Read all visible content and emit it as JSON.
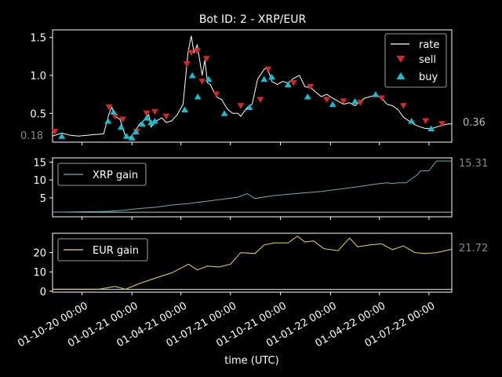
{
  "title": "Bot ID: 2 - XRP/EUR",
  "xlabel": "time (UTC)",
  "colors": {
    "background": "#000000",
    "rate": "#ffffff",
    "sell": "#d62728",
    "buy": "#17becf",
    "xrp_gain": "#6ab0ae",
    "eur_gain": "#f0d860",
    "axis": "#ffffff",
    "annotation": "#888888"
  },
  "chart_data": [
    {
      "type": "line",
      "name": "rate-panel",
      "x_range": [
        "2020-08-08",
        "2022-08-12"
      ],
      "ylim": [
        0.12,
        1.6
      ],
      "yticks": [
        0.5,
        1.0,
        1.5
      ],
      "ytick_labels": [
        "0.5",
        "1.0",
        "1.5"
      ],
      "legend": {
        "placement": "top-right",
        "entries": [
          "rate",
          "sell",
          "buy"
        ]
      },
      "left_annotation": "0.18",
      "right_annotation": "0.36",
      "series": [
        {
          "name": "rate",
          "x": [
            "2020-08-08",
            "2020-08-25",
            "2020-09-10",
            "2020-09-25",
            "2020-10-10",
            "2020-10-25",
            "2020-11-10",
            "2020-11-20",
            "2020-11-25",
            "2020-12-01",
            "2020-12-10",
            "2020-12-20",
            "2020-12-28",
            "2021-01-05",
            "2021-01-15",
            "2021-01-25",
            "2021-02-01",
            "2021-02-05",
            "2021-02-15",
            "2021-02-25",
            "2021-03-05",
            "2021-03-15",
            "2021-03-25",
            "2021-04-05",
            "2021-04-10",
            "2021-04-14",
            "2021-04-20",
            "2021-04-25",
            "2021-05-01",
            "2021-05-10",
            "2021-05-15",
            "2021-05-20",
            "2021-05-25",
            "2021-06-05",
            "2021-06-15",
            "2021-06-25",
            "2021-07-05",
            "2021-07-15",
            "2021-07-20",
            "2021-08-01",
            "2021-08-10",
            "2021-08-20",
            "2021-09-01",
            "2021-09-07",
            "2021-09-15",
            "2021-09-25",
            "2021-10-05",
            "2021-10-15",
            "2021-10-25",
            "2021-11-05",
            "2021-11-15",
            "2021-11-25",
            "2021-12-05",
            "2021-12-15",
            "2021-12-25",
            "2022-01-05",
            "2022-01-15",
            "2022-01-25",
            "2022-02-05",
            "2022-02-15",
            "2022-02-25",
            "2022-03-05",
            "2022-03-15",
            "2022-03-25",
            "2022-04-05",
            "2022-04-15",
            "2022-04-25",
            "2022-05-05",
            "2022-05-15",
            "2022-05-25",
            "2022-06-05",
            "2022-06-15",
            "2022-06-25",
            "2022-07-05",
            "2022-07-15",
            "2022-07-25",
            "2022-08-05",
            "2022-08-12"
          ],
          "y": [
            0.2,
            0.24,
            0.21,
            0.2,
            0.21,
            0.22,
            0.23,
            0.5,
            0.58,
            0.46,
            0.42,
            0.2,
            0.18,
            0.24,
            0.36,
            0.42,
            0.48,
            0.32,
            0.4,
            0.44,
            0.38,
            0.4,
            0.48,
            0.62,
            1.0,
            1.3,
            1.52,
            1.3,
            1.4,
            1.0,
            1.2,
            0.9,
            0.88,
            0.72,
            0.68,
            0.56,
            0.5,
            0.5,
            0.46,
            0.58,
            0.62,
            0.95,
            1.08,
            1.1,
            0.92,
            0.88,
            0.92,
            0.9,
            0.96,
            1.0,
            0.85,
            0.84,
            0.78,
            0.72,
            0.75,
            0.7,
            0.66,
            0.62,
            0.64,
            0.6,
            0.66,
            0.7,
            0.72,
            0.74,
            0.7,
            0.62,
            0.6,
            0.55,
            0.45,
            0.4,
            0.35,
            0.32,
            0.3,
            0.3,
            0.32,
            0.34,
            0.36,
            0.36
          ]
        }
      ],
      "sell": {
        "x": [
          "2020-08-12",
          "2020-11-20",
          "2020-12-01",
          "2020-12-15",
          "2021-01-10",
          "2021-01-28",
          "2021-02-12",
          "2021-03-05",
          "2021-04-12",
          "2021-04-20",
          "2021-05-01",
          "2021-05-10",
          "2021-05-18",
          "2021-06-05",
          "2021-07-20",
          "2021-08-25",
          "2021-09-08",
          "2021-10-25",
          "2021-11-25",
          "2021-12-25",
          "2022-01-25",
          "2022-02-25",
          "2022-04-05",
          "2022-05-15",
          "2022-06-25",
          "2022-07-25"
        ],
        "y": [
          0.26,
          0.58,
          0.46,
          0.42,
          0.26,
          0.5,
          0.52,
          0.46,
          1.15,
          1.3,
          1.32,
          0.92,
          1.22,
          0.75,
          0.6,
          0.68,
          1.08,
          0.9,
          0.85,
          0.68,
          0.66,
          0.64,
          0.7,
          0.6,
          0.4,
          0.36
        ]
      },
      "buy": {
        "x": [
          "2020-08-25",
          "2020-11-18",
          "2020-11-28",
          "2020-12-12",
          "2020-12-22",
          "2021-01-01",
          "2021-01-08",
          "2021-01-20",
          "2021-01-28",
          "2021-02-05",
          "2021-02-12",
          "2021-04-08",
          "2021-04-22",
          "2021-05-02",
          "2021-05-22",
          "2021-06-20",
          "2021-08-05",
          "2021-09-01",
          "2021-09-15",
          "2021-10-15",
          "2021-11-20",
          "2022-01-05",
          "2022-02-15",
          "2022-03-25",
          "2022-05-30",
          "2022-07-05"
        ],
        "y": [
          0.2,
          0.4,
          0.52,
          0.32,
          0.2,
          0.18,
          0.26,
          0.36,
          0.44,
          0.38,
          0.4,
          0.55,
          1.0,
          0.72,
          0.95,
          0.5,
          0.58,
          0.95,
          0.98,
          0.88,
          0.72,
          0.62,
          0.66,
          0.75,
          0.4,
          0.3
        ]
      }
    },
    {
      "type": "line",
      "name": "xrp-gain-panel",
      "x_range": [
        "2020-08-08",
        "2022-08-12"
      ],
      "ylim": [
        -0.3,
        16.2
      ],
      "yticks": [
        5,
        10,
        15
      ],
      "ytick_labels": [
        "5",
        "10",
        "15"
      ],
      "legend": {
        "placement": "top-left",
        "entries": [
          "XRP gain"
        ]
      },
      "right_annotation": "15.31",
      "baseline": 1,
      "series": [
        {
          "name": "XRP gain",
          "x": [
            "2020-08-08",
            "2020-10-01",
            "2020-11-15",
            "2020-12-15",
            "2021-01-15",
            "2021-02-15",
            "2021-03-15",
            "2021-04-15",
            "2021-05-15",
            "2021-06-15",
            "2021-07-15",
            "2021-08-01",
            "2021-08-15",
            "2021-09-15",
            "2021-10-15",
            "2021-11-15",
            "2021-12-15",
            "2022-01-15",
            "2022-02-15",
            "2022-03-15",
            "2022-04-01",
            "2022-04-15",
            "2022-04-25",
            "2022-05-05",
            "2022-05-20",
            "2022-06-10",
            "2022-06-15",
            "2022-07-01",
            "2022-07-15",
            "2022-08-12"
          ],
          "y": [
            1.0,
            1.1,
            1.2,
            1.5,
            2.0,
            2.4,
            3.0,
            3.4,
            4.0,
            4.6,
            5.2,
            6.2,
            4.8,
            5.6,
            6.0,
            6.4,
            6.8,
            7.4,
            8.0,
            8.6,
            9.0,
            9.2,
            9.0,
            9.2,
            9.2,
            11.5,
            12.5,
            12.6,
            15.31,
            15.31
          ]
        }
      ]
    },
    {
      "type": "line",
      "name": "eur-gain-panel",
      "x_range": [
        "2020-08-08",
        "2022-08-12"
      ],
      "ylim": [
        -0.5,
        30
      ],
      "yticks": [
        0,
        10,
        20
      ],
      "ytick_labels": [
        "0",
        "10",
        "20"
      ],
      "legend": {
        "placement": "top-left",
        "entries": [
          "EUR gain"
        ]
      },
      "right_annotation": "21.72",
      "baseline": 1,
      "xticks": [
        "2020-10-01",
        "2021-01-01",
        "2021-04-01",
        "2021-07-01",
        "2021-10-01",
        "2022-01-01",
        "2022-04-01",
        "2022-07-01"
      ],
      "xtick_labels": [
        "01-10-20 00:00",
        "01-01-21 00:00",
        "01-04-21 00:00",
        "01-07-21 00:00",
        "01-10-21 00:00",
        "01-01-22 00:00",
        "01-04-22 00:00",
        "01-07-22 00:00"
      ],
      "series": [
        {
          "name": "EUR gain",
          "x": [
            "2020-08-08",
            "2020-11-01",
            "2020-12-01",
            "2020-12-20",
            "2021-01-15",
            "2021-02-15",
            "2021-03-15",
            "2021-04-15",
            "2021-05-01",
            "2021-05-20",
            "2021-06-10",
            "2021-07-01",
            "2021-07-20",
            "2021-08-15",
            "2021-09-01",
            "2021-09-20",
            "2021-10-15",
            "2021-11-01",
            "2021-11-15",
            "2021-12-01",
            "2021-12-20",
            "2022-01-15",
            "2022-02-05",
            "2022-02-20",
            "2022-03-15",
            "2022-04-05",
            "2022-04-25",
            "2022-05-15",
            "2022-06-05",
            "2022-06-25",
            "2022-07-15",
            "2022-08-12"
          ],
          "y": [
            1.0,
            1.0,
            2.5,
            1.0,
            4.0,
            7.0,
            9.5,
            14.0,
            11.0,
            13.0,
            12.5,
            14.0,
            20.0,
            19.5,
            24.0,
            25.0,
            25.0,
            28.5,
            25.5,
            26.0,
            22.0,
            21.0,
            27.5,
            23.0,
            24.0,
            24.5,
            21.5,
            23.5,
            20.0,
            19.5,
            20.0,
            21.72
          ]
        }
      ]
    }
  ]
}
